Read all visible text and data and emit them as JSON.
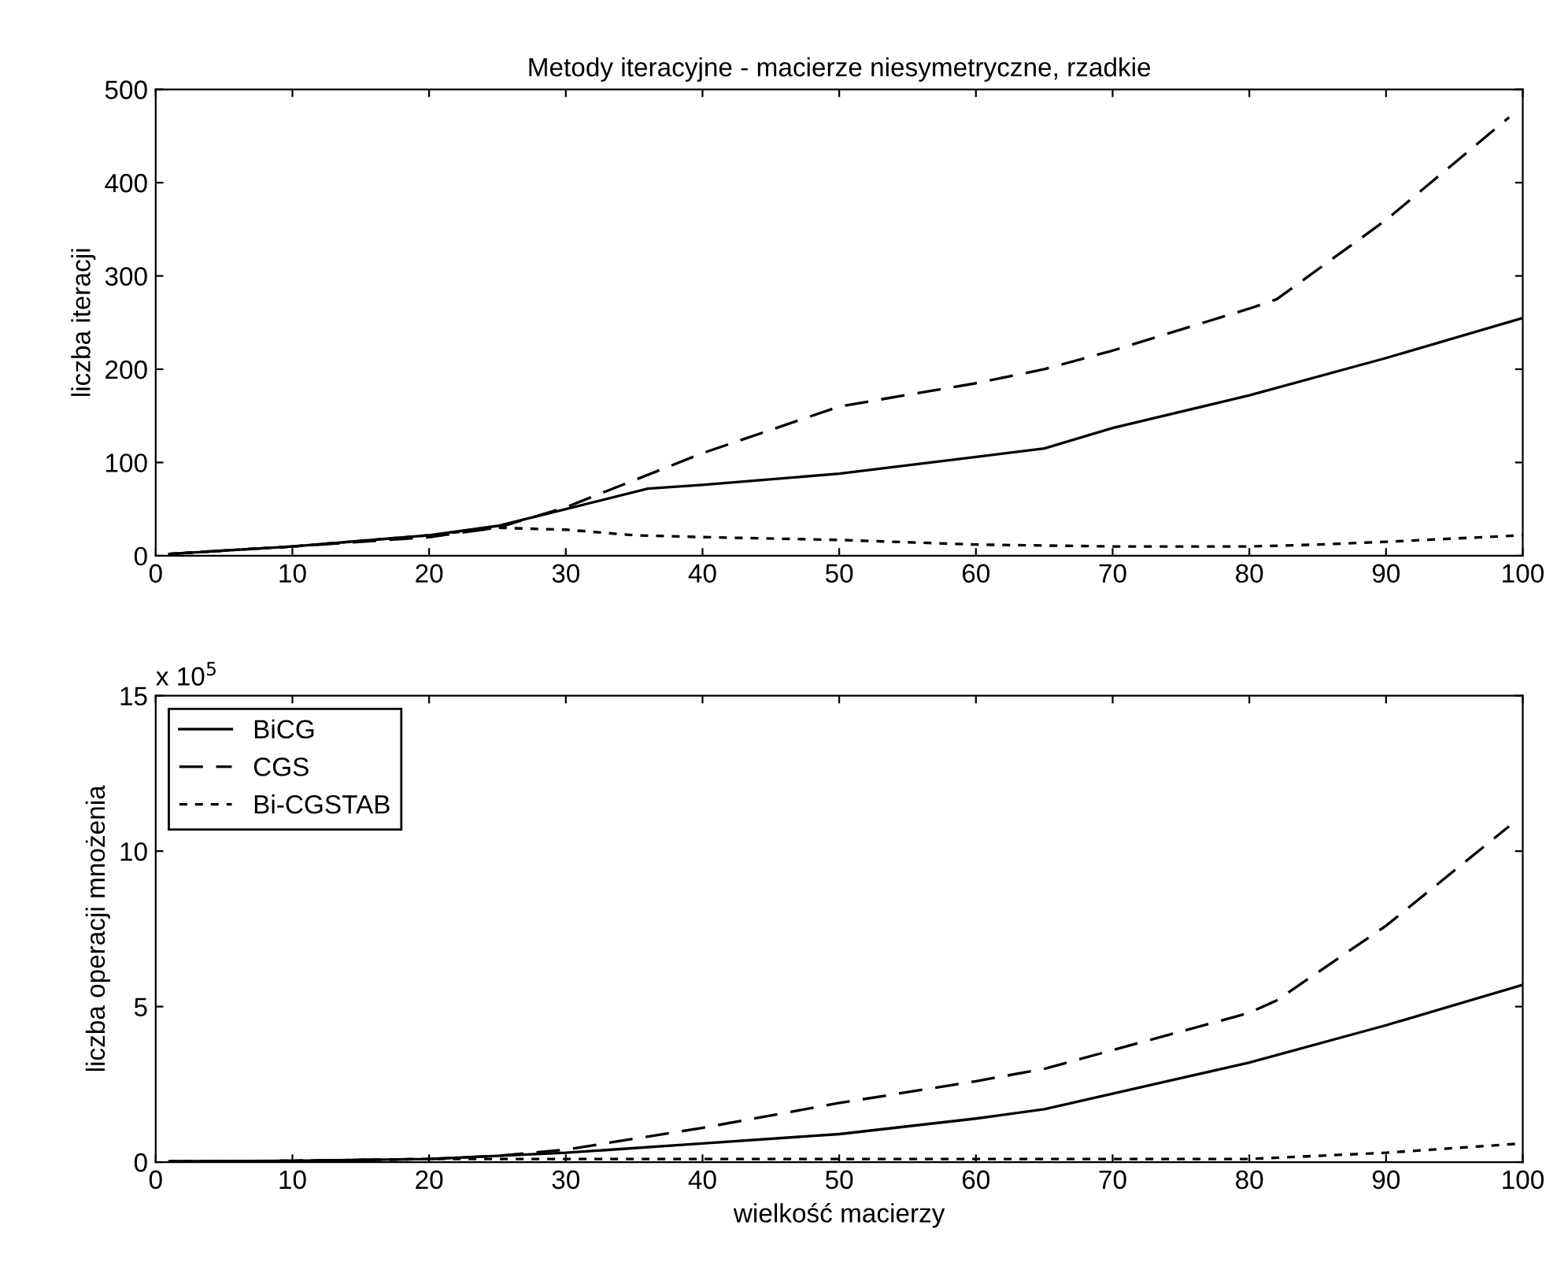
{
  "chart_data": [
    {
      "type": "line",
      "title": "Metody iteracyjne - macierze niesymetryczne, rzadkie",
      "ylabel": "liczba iteracji",
      "xlim": [
        0,
        100
      ],
      "xticks": [
        0,
        10,
        20,
        30,
        40,
        50,
        60,
        70,
        80,
        90,
        100
      ],
      "ylim": [
        0,
        500
      ],
      "yticks": [
        0,
        100,
        200,
        300,
        400,
        500
      ],
      "grid": false,
      "legend": false,
      "series": [
        {
          "color": "#000000",
          "line_style": "solid",
          "x": [
            1,
            10,
            20,
            25,
            30,
            36,
            40,
            50,
            60,
            65,
            70,
            80,
            90,
            100
          ],
          "values": [
            2,
            10,
            22,
            32,
            50,
            72,
            76,
            88,
            106,
            115,
            137,
            172,
            212,
            255
          ]
        },
        {
          "color": "#000000",
          "line_style": "dashed",
          "x": [
            1,
            10,
            20,
            25,
            30,
            40,
            50,
            60,
            65,
            70,
            80,
            82,
            90,
            99
          ],
          "values": [
            2,
            10,
            20,
            30,
            52,
            110,
            160,
            185,
            200,
            220,
            265,
            275,
            360,
            470
          ]
        },
        {
          "color": "#000000",
          "line_style": "dotted",
          "x": [
            1,
            10,
            20,
            25,
            30,
            35,
            40,
            50,
            60,
            70,
            80,
            85,
            90,
            100
          ],
          "values": [
            2,
            10,
            22,
            30,
            28,
            22,
            20,
            17,
            12,
            10,
            10,
            12,
            15,
            22
          ]
        }
      ]
    },
    {
      "type": "line",
      "xlabel": "wielkość macierzy",
      "ylabel": "liczba operacji mnożenia",
      "annotations": [
        "x 10$^{5}$"
      ],
      "xlim": [
        0,
        100
      ],
      "xticks": [
        0,
        10,
        20,
        30,
        40,
        50,
        60,
        70,
        80,
        90,
        100
      ],
      "ylim": [
        0,
        15
      ],
      "yticks": [
        0,
        5,
        10,
        15
      ],
      "grid": false,
      "legend": "top left",
      "series": [
        {
          "name": "BiCG",
          "color": "#000000",
          "line_style": "solid",
          "x": [
            1,
            10,
            20,
            25,
            30,
            40,
            50,
            60,
            65,
            70,
            80,
            90,
            100
          ],
          "values": [
            0.02,
            0.04,
            0.1,
            0.2,
            0.3,
            0.6,
            0.9,
            1.4,
            1.7,
            2.2,
            3.2,
            4.4,
            5.7
          ]
        },
        {
          "name": "CGS",
          "color": "#000000",
          "line_style": "dashed",
          "x": [
            1,
            10,
            20,
            25,
            30,
            40,
            50,
            60,
            65,
            70,
            80,
            82,
            90,
            99
          ],
          "values": [
            0.02,
            0.04,
            0.1,
            0.2,
            0.4,
            1.1,
            1.9,
            2.6,
            3.0,
            3.6,
            4.8,
            5.2,
            7.6,
            10.8
          ]
        },
        {
          "name": "Bi-CGSTAB",
          "color": "#000000",
          "line_style": "dotted",
          "x": [
            1,
            10,
            20,
            30,
            40,
            50,
            60,
            70,
            80,
            85,
            90,
            100
          ],
          "values": [
            0.02,
            0.04,
            0.1,
            0.1,
            0.1,
            0.1,
            0.1,
            0.1,
            0.1,
            0.2,
            0.3,
            0.6
          ]
        }
      ]
    }
  ]
}
